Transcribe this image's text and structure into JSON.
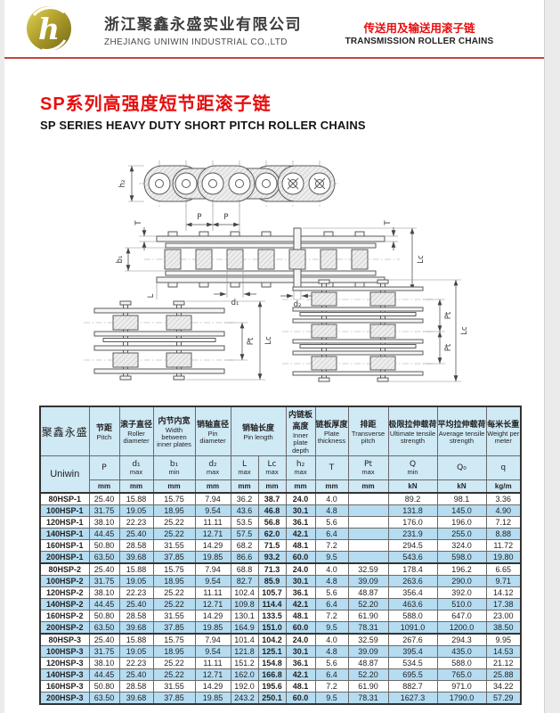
{
  "colors": {
    "accent_red": "#e60f0f",
    "divider_red": "#c5443c",
    "table_header_bg": "#cfe9f5",
    "table_zebra_bg": "#b5dcf1",
    "logo_gold": "#b1a02c"
  },
  "header": {
    "company_cn": "浙江聚鑫永盛实业有限公司",
    "company_en": "ZHEJIANG UNIWIN  INDUSTRIAL CO.,LTD",
    "product_line_cn": "传送用及输送用滚子链",
    "product_line_en": "TRANSMISSION ROLLER CHAINS"
  },
  "title": {
    "cn": "SP系列高强度短节距滚子链",
    "en": "SP SERIES HEAVY DUTY SHORT PITCH ROLLER CHAINS"
  },
  "diagram": {
    "labels": {
      "h2": "h₂",
      "p_left": "P",
      "p_right": "P",
      "t_left": "T",
      "b1": "b₁",
      "l": "L",
      "d1": "d₁",
      "d2": "d₂",
      "t_right": "T",
      "lc_plan": "Lc",
      "pt_duplex": "Pt",
      "lc_duplex": "Lc",
      "pt_triplex_1": "Pt",
      "pt_triplex_2": "Pt",
      "lc_triplex": "Lc"
    }
  },
  "table": {
    "brand_cn": "聚鑫永盛",
    "brand_en": "Uniwin",
    "columns": [
      {
        "cn": "节距",
        "en": "Pitch",
        "sym": "P",
        "sub": "",
        "unit": "mm"
      },
      {
        "cn": "滚子直径",
        "en": "Roller diameter",
        "sym": "d₁",
        "sub": "max",
        "unit": "mm"
      },
      {
        "cn": "内节内宽",
        "en": "Width between inner plates",
        "sym": "b₁",
        "sub": "min",
        "unit": "mm"
      },
      {
        "cn": "销轴直径",
        "en": "Pin diameter",
        "sym": "d₂",
        "sub": "max",
        "unit": "mm"
      },
      {
        "cn": "销轴长度",
        "en": "Pin length",
        "subcols": [
          {
            "sym": "L",
            "sub": "max",
            "unit": "mm"
          },
          {
            "sym": "Lc",
            "sub": "max",
            "unit": "mm"
          }
        ]
      },
      {
        "cn": "内链板高度",
        "en": "Inner plate depth",
        "sym": "h₂",
        "sub": "max",
        "unit": "mm"
      },
      {
        "cn": "链板厚度",
        "en": "Plate thickness",
        "sym": "T",
        "sub": "",
        "unit": "mm"
      },
      {
        "cn": "排距",
        "en": "Transverse pitch",
        "sym": "Pt",
        "sub": "max",
        "unit": "mm"
      },
      {
        "cn": "极限拉伸载荷",
        "en": "Ultimate tensile strength",
        "sym": "Q",
        "sub": "min",
        "unit": "kN"
      },
      {
        "cn": "平均拉伸载荷",
        "en": "Average tensile strength",
        "sym": "Q₀",
        "sub": "",
        "unit": "kN"
      },
      {
        "cn": "每米长重",
        "en": "Weight per meter",
        "sym": "q",
        "sub": "",
        "unit": "kg/m"
      }
    ],
    "rows": [
      {
        "model": "80HSP-1",
        "v": [
          "25.40",
          "15.88",
          "15.75",
          "7.94",
          "36.2",
          "38.7",
          "24.0",
          "4.0",
          "",
          "89.2",
          "98.1",
          "3.36"
        ]
      },
      {
        "model": "100HSP-1",
        "v": [
          "31.75",
          "19.05",
          "18.95",
          "9.54",
          "43.6",
          "46.8",
          "30.1",
          "4.8",
          "",
          "131.8",
          "145.0",
          "4.90"
        ]
      },
      {
        "model": "120HSP-1",
        "v": [
          "38.10",
          "22.23",
          "25.22",
          "11.11",
          "53.5",
          "56.8",
          "36.1",
          "5.6",
          "",
          "176.0",
          "196.0",
          "7.12"
        ]
      },
      {
        "model": "140HSP-1",
        "v": [
          "44.45",
          "25.40",
          "25.22",
          "12.71",
          "57.5",
          "62.0",
          "42.1",
          "6.4",
          "",
          "231.9",
          "255.0",
          "8.88"
        ]
      },
      {
        "model": "160HSP-1",
        "v": [
          "50.80",
          "28.58",
          "31.55",
          "14.29",
          "68.2",
          "71.5",
          "48.1",
          "7.2",
          "",
          "294.5",
          "324.0",
          "11.72"
        ]
      },
      {
        "model": "200HSP-1",
        "v": [
          "63.50",
          "39.68",
          "37.85",
          "19.85",
          "86.6",
          "93.2",
          "60.0",
          "9.5",
          "",
          "543.6",
          "598.0",
          "19.80"
        ]
      },
      {
        "model": "80HSP-2",
        "v": [
          "25.40",
          "15.88",
          "15.75",
          "7.94",
          "68.8",
          "71.3",
          "24.0",
          "4.0",
          "32.59",
          "178.4",
          "196.2",
          "6.65"
        ]
      },
      {
        "model": "100HSP-2",
        "v": [
          "31.75",
          "19.05",
          "18.95",
          "9.54",
          "82.7",
          "85.9",
          "30.1",
          "4.8",
          "39.09",
          "263.6",
          "290.0",
          "9.71"
        ]
      },
      {
        "model": "120HSP-2",
        "v": [
          "38.10",
          "22.23",
          "25.22",
          "11.11",
          "102.4",
          "105.7",
          "36.1",
          "5.6",
          "48.87",
          "356.4",
          "392.0",
          "14.12"
        ]
      },
      {
        "model": "140HSP-2",
        "v": [
          "44.45",
          "25.40",
          "25.22",
          "12.71",
          "109.8",
          "114.4",
          "42.1",
          "6.4",
          "52.20",
          "463.6",
          "510.0",
          "17.38"
        ]
      },
      {
        "model": "160HSP-2",
        "v": [
          "50.80",
          "28.58",
          "31.55",
          "14.29",
          "130.1",
          "133.5",
          "48.1",
          "7.2",
          "61.90",
          "588.0",
          "647.0",
          "23.00"
        ]
      },
      {
        "model": "200HSP-2",
        "v": [
          "63.50",
          "39.68",
          "37.85",
          "19.85",
          "164.9",
          "151.0",
          "60.0",
          "9.5",
          "78.31",
          "1091.0",
          "1200.0",
          "38.50"
        ]
      },
      {
        "model": "80HSP-3",
        "v": [
          "25.40",
          "15.88",
          "15.75",
          "7.94",
          "101.4",
          "104.2",
          "24.0",
          "4.0",
          "32.59",
          "267.6",
          "294.3",
          "9.95"
        ]
      },
      {
        "model": "100HSP-3",
        "v": [
          "31.75",
          "19.05",
          "18.95",
          "9.54",
          "121.8",
          "125.1",
          "30.1",
          "4.8",
          "39.09",
          "395.4",
          "435.0",
          "14.53"
        ]
      },
      {
        "model": "120HSP-3",
        "v": [
          "38.10",
          "22.23",
          "25.22",
          "11.11",
          "151.2",
          "154.8",
          "36.1",
          "5.6",
          "48.87",
          "534.5",
          "588.0",
          "21.12"
        ]
      },
      {
        "model": "140HSP-3",
        "v": [
          "44.45",
          "25.40",
          "25.22",
          "12.71",
          "162.0",
          "166.8",
          "42.1",
          "6.4",
          "52.20",
          "695.5",
          "765.0",
          "25.88"
        ]
      },
      {
        "model": "160HSP-3",
        "v": [
          "50.80",
          "28.58",
          "31.55",
          "14.29",
          "192.0",
          "195.6",
          "48.1",
          "7.2",
          "61.90",
          "882.7",
          "971.0",
          "34.22"
        ]
      },
      {
        "model": "200HSP-3",
        "v": [
          "63.50",
          "39.68",
          "37.85",
          "19.85",
          "243.2",
          "250.1",
          "60.0",
          "9.5",
          "78.31",
          "1627.3",
          "1790.0",
          "57.29"
        ]
      }
    ]
  }
}
